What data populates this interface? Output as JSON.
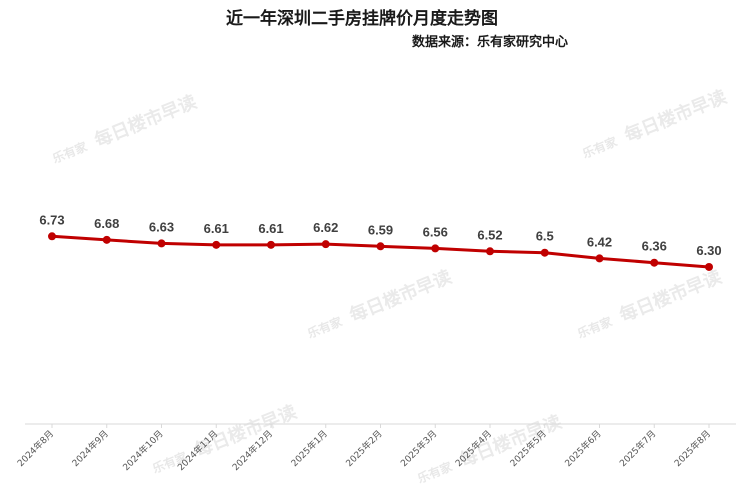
{
  "watermark": {
    "logo": "乐有家",
    "text": "每日楼市早读"
  },
  "chart_data": {
    "type": "line",
    "title": "近一年深圳二手房挂牌价月度走势图",
    "subtitle": "数据来源：乐有家研究中心",
    "categories": [
      "2024年8月",
      "2024年9月",
      "2024年10月",
      "2024年11月",
      "2024年12月",
      "2025年1月",
      "2025年2月",
      "2025年3月",
      "2025年4月",
      "2025年5月",
      "2025年6月",
      "2025年7月",
      "2025年8月"
    ],
    "values": [
      6.73,
      6.68,
      6.63,
      6.61,
      6.61,
      6.62,
      6.59,
      6.56,
      6.52,
      6.5,
      6.42,
      6.36,
      6.3
    ],
    "data_labels": [
      "6.73",
      "6.68",
      "6.63",
      "6.61",
      "6.61",
      "6.62",
      "6.59",
      "6.56",
      "6.52",
      "6.5",
      "6.42",
      "6.36",
      "6.30"
    ],
    "series_color": "#c00000",
    "xlabel": "",
    "ylabel": "",
    "ylim": [
      4.1,
      9.2
    ],
    "grid": false,
    "legend": "none"
  }
}
